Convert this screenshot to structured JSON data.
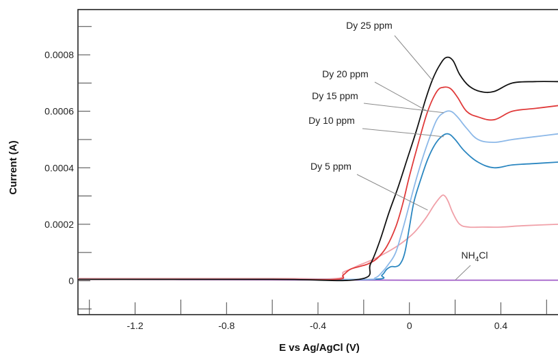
{
  "chart_data": {
    "type": "line",
    "title": "",
    "xlabel": "E vs Ag/AgCl (V)",
    "ylabel": "Current (A)",
    "xlim": [
      -1.45,
      0.65
    ],
    "ylim": [
      -0.00012,
      0.00096
    ],
    "x_ticks": [
      -1.2,
      -0.8,
      -0.4,
      0,
      0.4
    ],
    "x_tick_labels": [
      "-1.2",
      "-0.8",
      "-0.4",
      "0",
      "0.4"
    ],
    "y_ticks": [
      0,
      0.0002,
      0.0004,
      0.0006,
      0.0008
    ],
    "y_tick_labels": [
      "0",
      "0.0002",
      "0.0004",
      "0.0006",
      "0.0008"
    ],
    "grid": false,
    "legend": "annotations with leader lines",
    "series": [
      {
        "name": "NH4Cl",
        "label_main": "NH",
        "label_sub": "4",
        "label_tail": "Cl",
        "color": "#a05cc8",
        "x": [
          -1.45,
          -1.0,
          -0.5,
          0,
          0.3,
          0.65
        ],
        "y": [
          5e-06,
          4e-06,
          3e-06,
          2e-06,
          2e-06,
          2e-06
        ]
      },
      {
        "name": "Dy 5 ppm",
        "color": "#f0a0a8",
        "x": [
          -1.45,
          -0.6,
          -0.32,
          -0.29,
          -0.26,
          -0.22,
          -0.16,
          -0.1,
          -0.04,
          0.02,
          0.07,
          0.11,
          0.14,
          0.155,
          0.17,
          0.19,
          0.22,
          0.26,
          0.32,
          0.4,
          0.5,
          0.65
        ],
        "y": [
          8e-06,
          8e-06,
          8e-06,
          3e-05,
          4e-05,
          5.5e-05,
          7.5e-05,
          0.0001,
          0.00013,
          0.00017,
          0.00022,
          0.00027,
          0.0003,
          0.0003,
          0.00028,
          0.00024,
          0.0002,
          0.00019,
          0.00019,
          0.00019,
          0.000195,
          0.0002
        ]
      },
      {
        "name": "Dy 10 ppm",
        "color": "#2a86c0",
        "x": [
          -1.45,
          -0.6,
          -0.16,
          -0.12,
          -0.1,
          -0.08,
          -0.06,
          -0.04,
          -0.02,
          0.0,
          0.02,
          0.05,
          0.08,
          0.11,
          0.14,
          0.17,
          0.2,
          0.24,
          0.3,
          0.37,
          0.45,
          0.55,
          0.65
        ],
        "y": [
          5e-06,
          5e-06,
          5e-06,
          2e-05,
          4e-05,
          5e-05,
          5e-05,
          6e-05,
          0.0001,
          0.00019,
          0.00028,
          0.00036,
          0.00043,
          0.00048,
          0.00051,
          0.00052,
          0.0005,
          0.00046,
          0.00042,
          0.0004,
          0.00041,
          0.000415,
          0.00042
        ]
      },
      {
        "name": "Dy 15 ppm",
        "color": "#8cb8e8",
        "x": [
          -1.45,
          -0.6,
          -0.2,
          -0.15,
          -0.12,
          -0.09,
          -0.06,
          -0.03,
          0.0,
          0.03,
          0.06,
          0.09,
          0.12,
          0.15,
          0.18,
          0.21,
          0.25,
          0.3,
          0.37,
          0.45,
          0.55,
          0.65
        ],
        "y": [
          5e-06,
          5e-06,
          5e-06,
          1e-05,
          3e-05,
          6e-05,
          0.0001,
          0.00018,
          0.00027,
          0.00036,
          0.00044,
          0.00051,
          0.00057,
          0.000595,
          0.0006,
          0.00058,
          0.00054,
          0.0005,
          0.00049,
          0.0005,
          0.00051,
          0.00052
        ]
      },
      {
        "name": "Dy 20 ppm",
        "color": "#e03a3a",
        "x": [
          -1.45,
          -0.6,
          -0.32,
          -0.29,
          -0.26,
          -0.22,
          -0.18,
          -0.14,
          -0.1,
          -0.06,
          -0.03,
          0.0,
          0.04,
          0.08,
          0.12,
          0.15,
          0.18,
          0.21,
          0.25,
          0.3,
          0.37,
          0.45,
          0.55,
          0.65
        ],
        "y": [
          5e-06,
          5e-06,
          5e-06,
          2e-05,
          4e-05,
          5e-05,
          6e-05,
          8e-05,
          0.00012,
          0.00019,
          0.00027,
          0.00037,
          0.00049,
          0.0006,
          0.00067,
          0.000685,
          0.00068,
          0.00065,
          0.0006,
          0.00058,
          0.00057,
          0.0006,
          0.00061,
          0.00062
        ]
      },
      {
        "name": "Dy 25 ppm",
        "color": "#111111",
        "x": [
          -1.45,
          -0.6,
          -0.22,
          -0.17,
          -0.13,
          -0.09,
          -0.05,
          -0.01,
          0.03,
          0.07,
          0.1,
          0.13,
          0.16,
          0.19,
          0.22,
          0.26,
          0.31,
          0.37,
          0.45,
          0.55,
          0.65
        ],
        "y": [
          5e-06,
          5e-06,
          5e-06,
          6e-05,
          0.00014,
          0.00024,
          0.00033,
          0.00043,
          0.00053,
          0.00064,
          0.00071,
          0.00076,
          0.00079,
          0.00078,
          0.00073,
          0.00069,
          0.00067,
          0.00067,
          0.0007,
          0.000705,
          0.000705
        ]
      }
    ],
    "annotations": [
      {
        "series": "Dy 25 ppm",
        "text": "Dy 25 ppm",
        "point": [
          0.1,
          0.00071
        ]
      },
      {
        "series": "Dy 20 ppm",
        "text": "Dy 20 ppm",
        "point": [
          0.08,
          0.0006
        ]
      },
      {
        "series": "Dy 15 ppm",
        "text": "Dy 15 ppm",
        "point": [
          0.15,
          0.000595
        ]
      },
      {
        "series": "Dy 10 ppm",
        "text": "Dy 10 ppm",
        "point": [
          0.15,
          0.00051
        ]
      },
      {
        "series": "Dy 5 ppm",
        "text": "Dy 5 ppm",
        "point": [
          0.08,
          0.00025
        ]
      },
      {
        "series": "NH4Cl",
        "text": "NH4Cl",
        "point": [
          0.2,
          2e-06
        ]
      }
    ]
  }
}
